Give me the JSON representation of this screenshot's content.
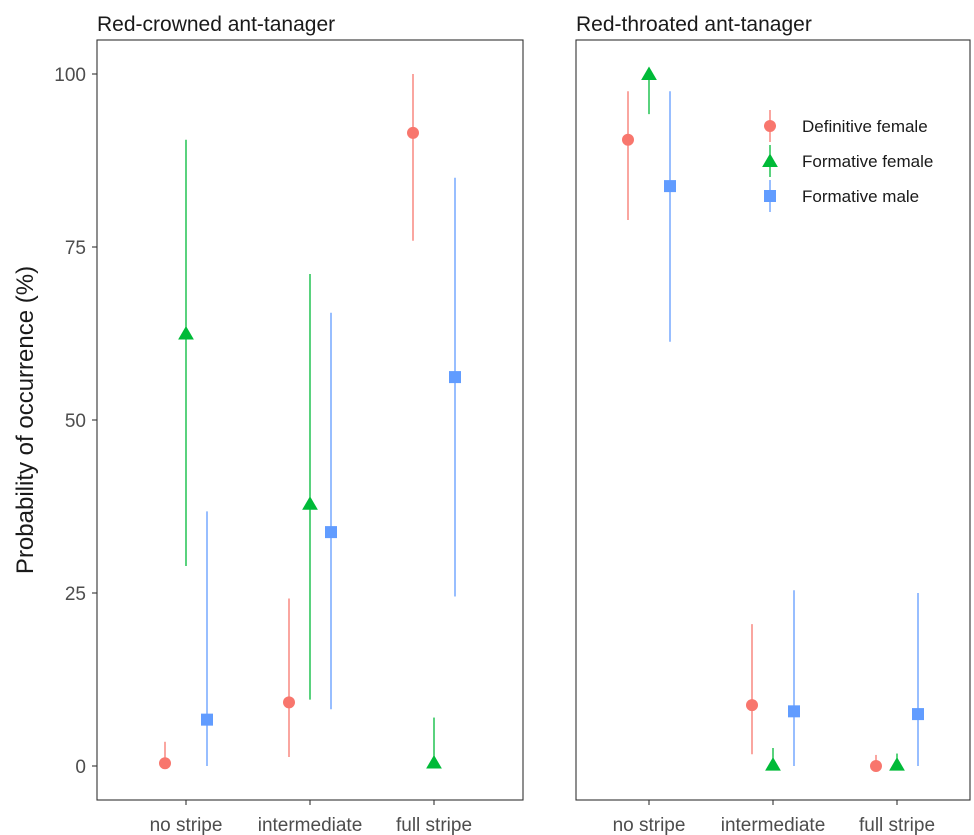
{
  "chart_data": {
    "type": "scatter",
    "ylabel": "Probability of occurrence (%)",
    "ylim": [
      0,
      100
    ],
    "yticks": [
      0,
      25,
      50,
      75,
      100
    ],
    "categories": [
      "no stripe",
      "intermediate",
      "full stripe"
    ],
    "series": [
      {
        "name": "Definitive female",
        "color": "#F8766D",
        "marker": "circle"
      },
      {
        "name": "Formative female",
        "color": "#00BA38",
        "marker": "triangle"
      },
      {
        "name": "Formative male",
        "color": "#619CFF",
        "marker": "square"
      }
    ],
    "legend_position": "top-right (inside right panel)",
    "grid": false,
    "panels": [
      {
        "title": "Red-crowned ant-tanager",
        "data": [
          [
            {
              "y": 0.4,
              "lo": 0,
              "hi": 3.5
            },
            {
              "y": 9.2,
              "lo": 1.3,
              "hi": 24.2
            },
            {
              "y": 91.5,
              "lo": 75.9,
              "hi": 100
            }
          ],
          [
            {
              "y": 62.5,
              "lo": 28.9,
              "hi": 90.5
            },
            {
              "y": 37.9,
              "lo": 9.6,
              "hi": 71.1
            },
            {
              "y": 0.5,
              "lo": 0,
              "hi": 7.0
            }
          ],
          [
            {
              "y": 6.7,
              "lo": 0,
              "hi": 36.8
            },
            {
              "y": 33.8,
              "lo": 8.2,
              "hi": 65.5
            },
            {
              "y": 56.2,
              "lo": 24.5,
              "hi": 85.0
            }
          ]
        ]
      },
      {
        "title": "Red-throated ant-tanager",
        "data": [
          [
            {
              "y": 90.5,
              "lo": 78.9,
              "hi": 97.5
            },
            {
              "y": 8.8,
              "lo": 1.7,
              "hi": 20.5
            },
            {
              "y": 0,
              "lo": 0,
              "hi": 1.6
            }
          ],
          [
            {
              "y": 100,
              "lo": 94.2,
              "hi": 100
            },
            {
              "y": 0.2,
              "lo": 0,
              "hi": 2.6
            },
            {
              "y": 0.2,
              "lo": 0,
              "hi": 1.8
            }
          ],
          [
            {
              "y": 83.8,
              "lo": 61.3,
              "hi": 97.5
            },
            {
              "y": 7.9,
              "lo": 0,
              "hi": 25.4
            },
            {
              "y": 7.5,
              "lo": 0,
              "hi": 25.0
            }
          ]
        ]
      }
    ]
  }
}
